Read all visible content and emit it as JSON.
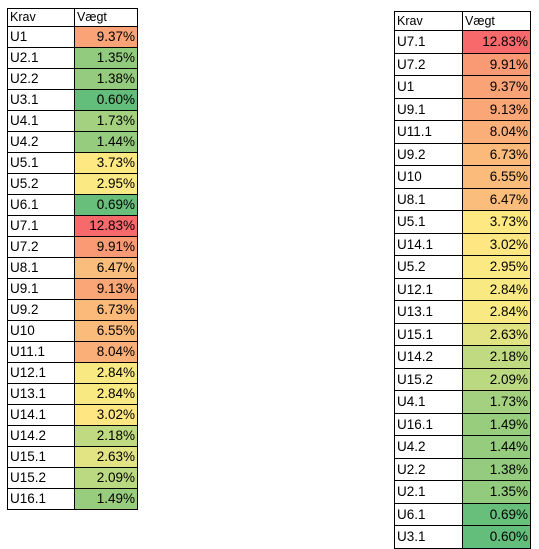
{
  "left_table": {
    "headers": [
      "Krav",
      "Vægt"
    ],
    "rows": [
      {
        "krav": "U1",
        "vaegt": "9.37%",
        "color": "#f9a377"
      },
      {
        "krav": "U2.1",
        "vaegt": "1.35%",
        "color": "#93cb7e"
      },
      {
        "krav": "U2.2",
        "vaegt": "1.38%",
        "color": "#94cb7e"
      },
      {
        "krav": "U3.1",
        "vaegt": "0.60%",
        "color": "#63be7b"
      },
      {
        "krav": "U4.1",
        "vaegt": "1.73%",
        "color": "#a3d17f"
      },
      {
        "krav": "U4.2",
        "vaegt": "1.44%",
        "color": "#96cc7e"
      },
      {
        "krav": "U5.1",
        "vaegt": "3.73%",
        "color": "#fde882"
      },
      {
        "krav": "U5.2",
        "vaegt": "2.95%",
        "color": "#fbe983"
      },
      {
        "krav": "U6.1",
        "vaegt": "0.69%",
        "color": "#67bf7b"
      },
      {
        "krav": "U7.1",
        "vaegt": "12.83%",
        "color": "#f8696b"
      },
      {
        "krav": "U7.2",
        "vaegt": "9.91%",
        "color": "#f99a74"
      },
      {
        "krav": "U8.1",
        "vaegt": "6.47%",
        "color": "#fbbd7b"
      },
      {
        "krav": "U9.1",
        "vaegt": "9.13%",
        "color": "#faa676"
      },
      {
        "krav": "U9.2",
        "vaegt": "6.73%",
        "color": "#fbb97a"
      },
      {
        "krav": "U10",
        "vaegt": "6.55%",
        "color": "#fbbb7a"
      },
      {
        "krav": "U11.1",
        "vaegt": "8.04%",
        "color": "#faaf78"
      },
      {
        "krav": "U12.1",
        "vaegt": "2.84%",
        "color": "#f9e983"
      },
      {
        "krav": "U13.1",
        "vaegt": "2.84%",
        "color": "#f9e983"
      },
      {
        "krav": "U14.1",
        "vaegt": "3.02%",
        "color": "#fee782"
      },
      {
        "krav": "U14.2",
        "vaegt": "2.18%",
        "color": "#c0da81"
      },
      {
        "krav": "U15.1",
        "vaegt": "2.63%",
        "color": "#e2e383"
      },
      {
        "krav": "U15.2",
        "vaegt": "2.09%",
        "color": "#bbd981"
      },
      {
        "krav": "U16.1",
        "vaegt": "1.49%",
        "color": "#99cd7e"
      }
    ]
  },
  "right_table": {
    "headers": [
      "Krav",
      "Vægt"
    ],
    "rows": [
      {
        "krav": "U7.1",
        "vaegt": "12.83%",
        "color": "#f8696b"
      },
      {
        "krav": "U7.2",
        "vaegt": "9.91%",
        "color": "#f99a74"
      },
      {
        "krav": "U1",
        "vaegt": "9.37%",
        "color": "#f9a377"
      },
      {
        "krav": "U9.1",
        "vaegt": "9.13%",
        "color": "#faa676"
      },
      {
        "krav": "U11.1",
        "vaegt": "8.04%",
        "color": "#faaf78"
      },
      {
        "krav": "U9.2",
        "vaegt": "6.73%",
        "color": "#fbb97a"
      },
      {
        "krav": "U10",
        "vaegt": "6.55%",
        "color": "#fbbb7a"
      },
      {
        "krav": "U8.1",
        "vaegt": "6.47%",
        "color": "#fbbd7b"
      },
      {
        "krav": "U5.1",
        "vaegt": "3.73%",
        "color": "#fde882"
      },
      {
        "krav": "U14.1",
        "vaegt": "3.02%",
        "color": "#fee782"
      },
      {
        "krav": "U5.2",
        "vaegt": "2.95%",
        "color": "#fbe983"
      },
      {
        "krav": "U12.1",
        "vaegt": "2.84%",
        "color": "#f9e983"
      },
      {
        "krav": "U13.1",
        "vaegt": "2.84%",
        "color": "#f9e983"
      },
      {
        "krav": "U15.1",
        "vaegt": "2.63%",
        "color": "#e2e383"
      },
      {
        "krav": "U14.2",
        "vaegt": "2.18%",
        "color": "#c0da81"
      },
      {
        "krav": "U15.2",
        "vaegt": "2.09%",
        "color": "#bbd981"
      },
      {
        "krav": "U4.1",
        "vaegt": "1.73%",
        "color": "#a3d17f"
      },
      {
        "krav": "U16.1",
        "vaegt": "1.49%",
        "color": "#99cd7e"
      },
      {
        "krav": "U4.2",
        "vaegt": "1.44%",
        "color": "#96cc7e"
      },
      {
        "krav": "U2.2",
        "vaegt": "1.38%",
        "color": "#94cb7e"
      },
      {
        "krav": "U2.1",
        "vaegt": "1.35%",
        "color": "#93cb7e"
      },
      {
        "krav": "U6.1",
        "vaegt": "0.69%",
        "color": "#67bf7b"
      },
      {
        "krav": "U3.1",
        "vaegt": "0.60%",
        "color": "#63be7b"
      }
    ]
  }
}
